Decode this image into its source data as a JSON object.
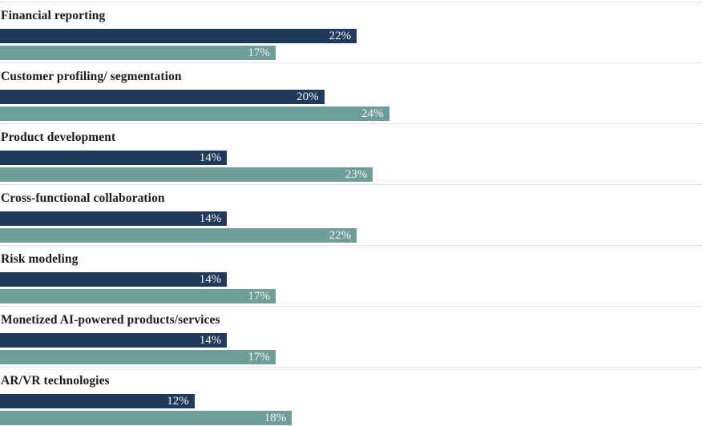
{
  "chart_data": {
    "type": "bar",
    "orientation": "horizontal",
    "title": "",
    "xlabel": "",
    "ylabel": "",
    "value_suffix": "%",
    "xlim": [
      0,
      43.3
    ],
    "grid": "dotted-row-separators",
    "legend": "none",
    "categories": [
      "Financial reporting",
      "Customer profiling/ segmentation",
      "Product development",
      "Cross-functional collaboration",
      "Risk modeling",
      "Monetized AI-powered products/services",
      "AR/VR technologies"
    ],
    "series": [
      {
        "name": "series-navy",
        "color": "#203a5c",
        "values": [
          22,
          20,
          14,
          14,
          14,
          14,
          12
        ]
      },
      {
        "name": "series-teal",
        "color": "#6f9e9a",
        "values": [
          17,
          24,
          23,
          22,
          17,
          17,
          18
        ]
      }
    ]
  },
  "colors": {
    "separator": "#c8c8c8",
    "label_text": "#1b1b1b",
    "value_text": "#f7f6f2"
  }
}
